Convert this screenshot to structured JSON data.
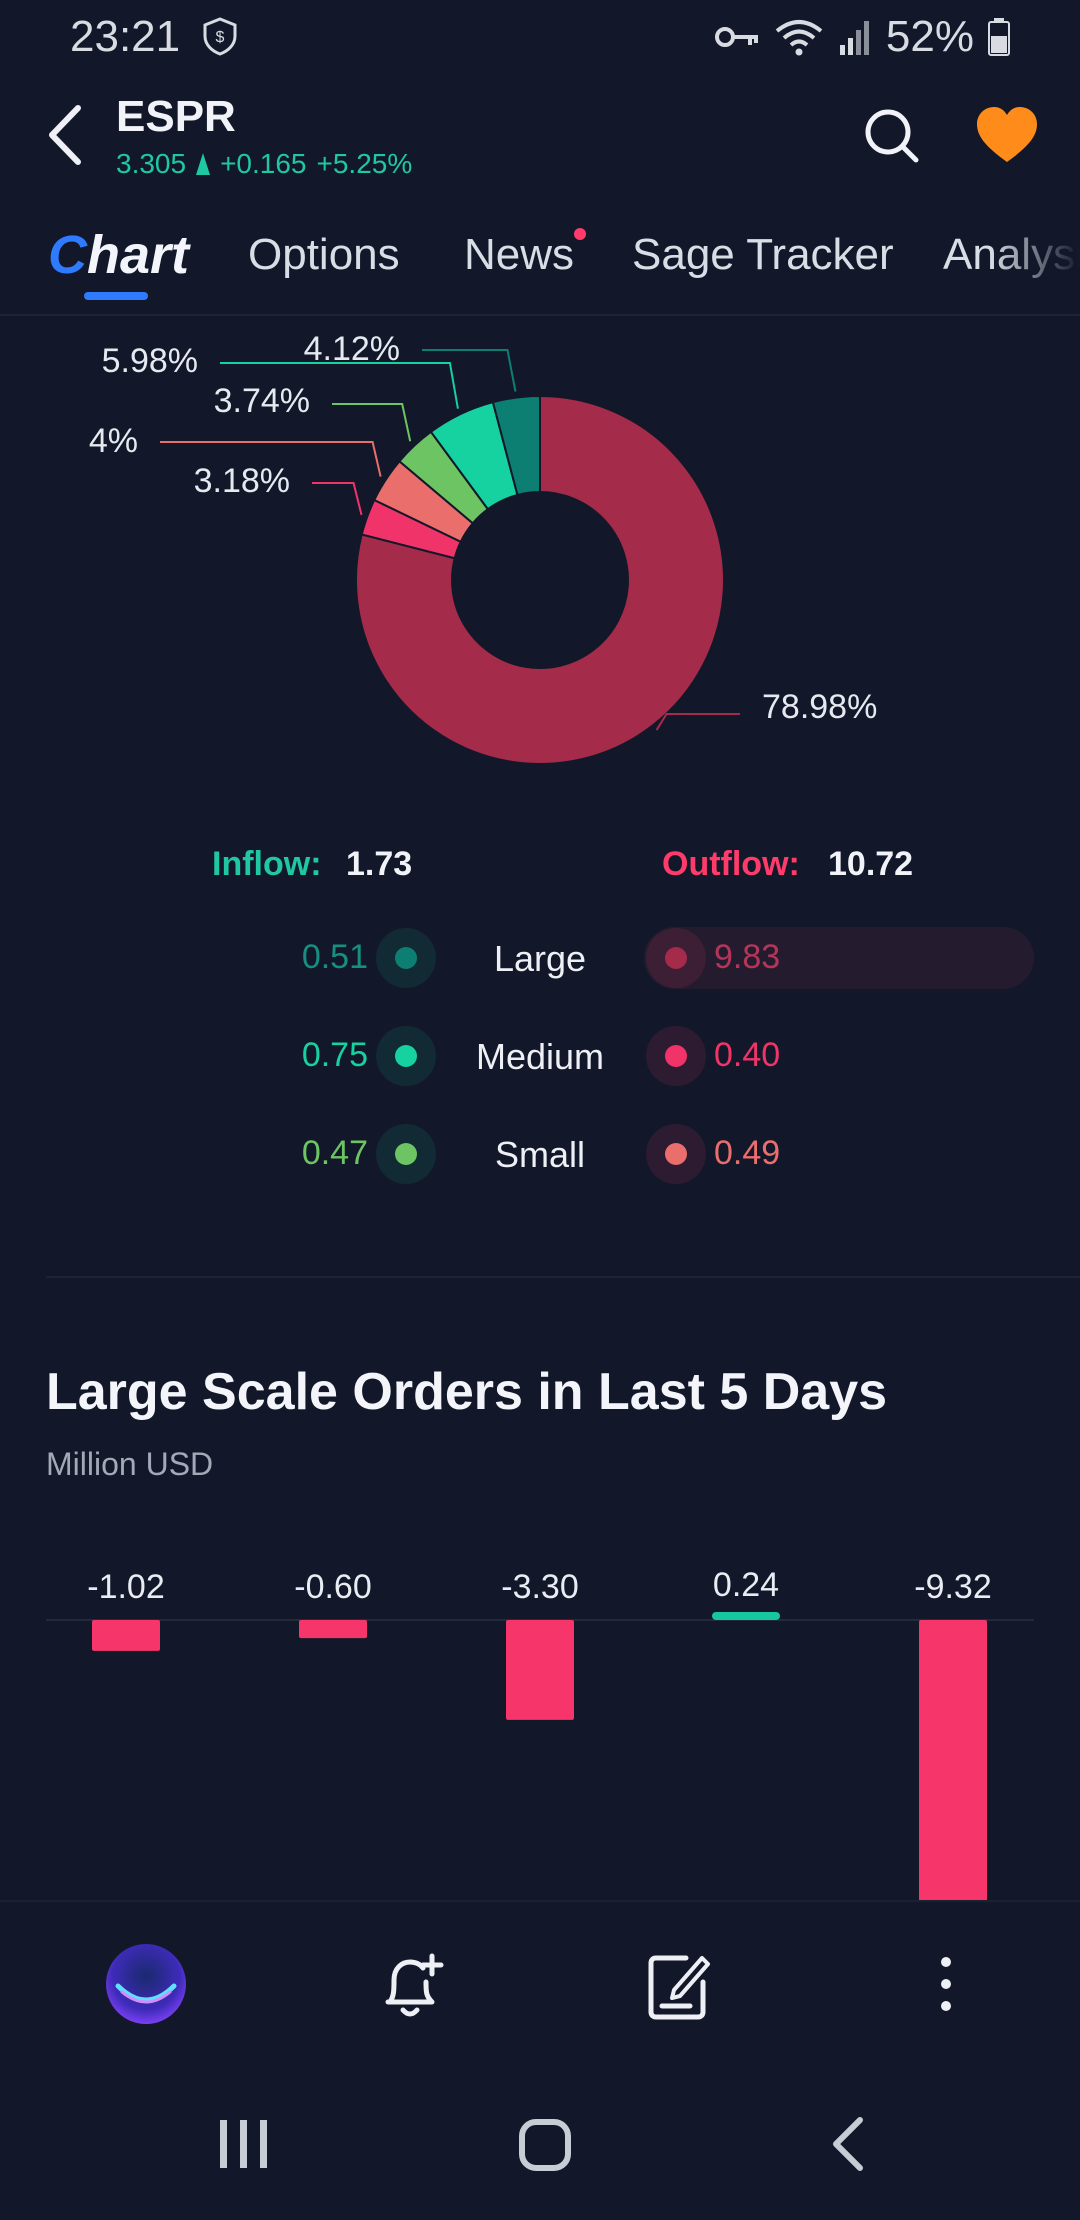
{
  "status_bar": {
    "time": "23:21",
    "battery": "52%"
  },
  "header": {
    "ticker": "ESPR",
    "price": "3.305",
    "change": "+0.165",
    "change_pct": "+5.25%",
    "colors": {
      "up": "#1fc8a0",
      "favorite": "#ff8c1a"
    }
  },
  "tabs": [
    {
      "label": "Chart",
      "active": true
    },
    {
      "label": "Options"
    },
    {
      "label": "News",
      "badge_dot": true
    },
    {
      "label": "Sage Tracker"
    },
    {
      "label": "Analysis"
    }
  ],
  "tab_chart_first": "C",
  "tab_chart_rest": "hart",
  "donut": {
    "slices": [
      {
        "pct": 78.98,
        "label": "78.98%",
        "color": "#a52b4a"
      },
      {
        "pct": 3.18,
        "label": "3.18%",
        "color": "#f0346a"
      },
      {
        "pct": 4.0,
        "label": "4%",
        "color": "#ea6e6c"
      },
      {
        "pct": 3.74,
        "label": "3.74%",
        "color": "#6cc463"
      },
      {
        "pct": 5.98,
        "label": "5.98%",
        "color": "#16d1a0"
      },
      {
        "pct": 4.12,
        "label": "4.12%",
        "color": "#0d7f72"
      }
    ]
  },
  "flow": {
    "inflow_label": "Inflow:",
    "inflow_value": "1.73",
    "outflow_label": "Outflow:",
    "outflow_value": "10.72",
    "rows": [
      {
        "label": "Large",
        "in": "0.51",
        "out": "9.83",
        "in_color": "#0d7f72",
        "out_color": "#a52b4a"
      },
      {
        "label": "Medium",
        "in": "0.75",
        "out": "0.40",
        "in_color": "#16d1a0",
        "out_color": "#f0346a"
      },
      {
        "label": "Small",
        "in": "0.47",
        "out": "0.49",
        "in_color": "#6cc463",
        "out_color": "#ea6e6c"
      }
    ]
  },
  "large_orders": {
    "title": "Large Scale Orders in Last 5 Days",
    "subtitle": "Million USD"
  },
  "chart_data": {
    "type": "bar",
    "title": "Large Scale Orders in Last 5 Days",
    "ylabel": "Million USD",
    "categories": [],
    "values": [
      -1.02,
      -0.6,
      -3.3,
      0.24,
      -9.32
    ],
    "labels": [
      "-1.02",
      "-0.60",
      "-3.30",
      "0.24",
      "-9.32"
    ],
    "colors": {
      "positive": "#16c7a0",
      "negative": "#f6356a"
    },
    "grid": false
  }
}
